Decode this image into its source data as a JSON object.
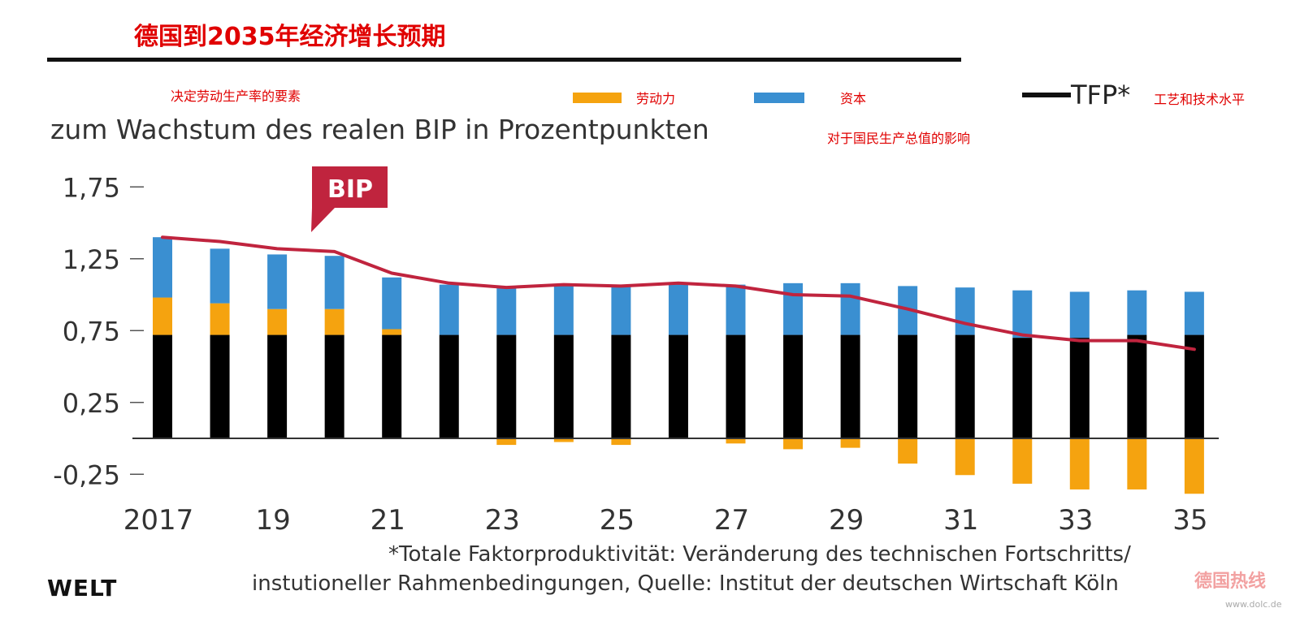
{
  "title_cn": "德国到2035年经济增长预期",
  "annotations": {
    "factors_cn": "决定劳动生产率的要素",
    "effect_cn": "对于国民生产总值的影响",
    "tech_cn": "工艺和技术水平"
  },
  "subtitle": "zum Wachstum des realen BIP in Prozentpunkten",
  "legend": {
    "labor_cn": "劳动力",
    "capital_cn": "资本",
    "tfp": "TFP*"
  },
  "footnote_line1": "*Totale Faktorproduktivität: Veränderung des technischen Fortschritts/",
  "footnote_line2": "instutioneller Rahmenbedingungen,  Quelle: Institut der deutschen Wirtschaft Köln",
  "logo": "WELT",
  "watermark": "德国热线",
  "watermark_url": "www.dolc.de",
  "chart_data": {
    "type": "bar",
    "stacked": true,
    "x": [
      2017,
      2018,
      2019,
      2020,
      2021,
      2022,
      2023,
      2024,
      2025,
      2026,
      2027,
      2028,
      2029,
      2030,
      2031,
      2032,
      2033,
      2034,
      2035
    ],
    "x_tick_labels": [
      "2017",
      "19",
      "21",
      "23",
      "25",
      "27",
      "29",
      "31",
      "33",
      "35"
    ],
    "y_ticks": [
      "1,75",
      "1,25",
      "0,75",
      "0,25",
      "-0,25"
    ],
    "y_tick_values": [
      1.75,
      1.25,
      0.75,
      0.25,
      -0.25
    ],
    "ylim": [
      -0.3,
      1.8
    ],
    "series": [
      {
        "name": "TFP*",
        "color": "#000000",
        "values": [
          0.72,
          0.72,
          0.72,
          0.72,
          0.72,
          0.72,
          0.72,
          0.72,
          0.72,
          0.72,
          0.72,
          0.72,
          0.72,
          0.72,
          0.72,
          0.7,
          0.7,
          0.72,
          0.72
        ]
      },
      {
        "name": "劳动力",
        "color": "#f5a30f",
        "values": [
          0.26,
          0.22,
          0.18,
          0.18,
          0.04,
          0.0,
          -0.04,
          -0.02,
          -0.04,
          0.0,
          -0.03,
          -0.07,
          -0.06,
          -0.17,
          -0.25,
          -0.31,
          -0.35,
          -0.35,
          -0.38
        ]
      },
      {
        "name": "资本",
        "color": "#3a8fd1",
        "values": [
          0.42,
          0.38,
          0.38,
          0.37,
          0.36,
          0.35,
          0.34,
          0.35,
          0.34,
          0.36,
          0.35,
          0.36,
          0.36,
          0.34,
          0.33,
          0.33,
          0.32,
          0.31,
          0.3
        ]
      },
      {
        "name": "BIP",
        "color": "#c0243e",
        "type": "line",
        "values": [
          1.4,
          1.37,
          1.32,
          1.3,
          1.15,
          1.08,
          1.05,
          1.07,
          1.06,
          1.08,
          1.06,
          1.0,
          0.99,
          0.9,
          0.8,
          0.72,
          0.68,
          0.68,
          0.62
        ]
      }
    ],
    "callout": "BIP"
  }
}
